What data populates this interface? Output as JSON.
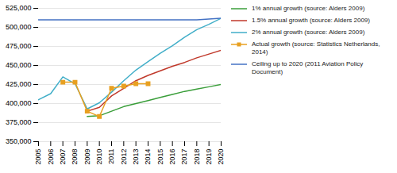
{
  "chart_data": {
    "type": "line",
    "xlim": [
      2005,
      2020
    ],
    "xticks": [
      2005,
      2006,
      2007,
      2008,
      2009,
      2010,
      2011,
      2012,
      2013,
      2014,
      2015,
      2016,
      2017,
      2018,
      2019,
      2020
    ],
    "ylim": [
      350000,
      525000
    ],
    "yticks": [
      {
        "value": 350000,
        "label": "350,000"
      },
      {
        "value": 375000,
        "label": "375,000"
      },
      {
        "value": 400000,
        "label": "400,000"
      },
      {
        "value": 425000,
        "label": "425,000"
      },
      {
        "value": 450000,
        "label": "450,000"
      },
      {
        "value": 475000,
        "label": "475,000"
      },
      {
        "value": 500000,
        "label": "500,000"
      },
      {
        "value": 525000,
        "label": "525,000"
      }
    ],
    "grid": "y",
    "legend": "right",
    "series": [
      {
        "name": "1% annual growth (source: Alders 2009)",
        "color": "#3a9e3a",
        "x": [
          2009,
          2010,
          2011,
          2012,
          2013,
          2014,
          2015,
          2016,
          2017,
          2018,
          2019,
          2020
        ],
        "values": [
          383000,
          384000,
          390000,
          396000,
          400000,
          404000,
          408000,
          412000,
          416000,
          419000,
          422000,
          425000
        ]
      },
      {
        "name": "1.5% annual growth (source: Alders 2009)",
        "color": "#c0392b",
        "x": [
          2009,
          2010,
          2011,
          2012,
          2013,
          2014,
          2015,
          2016,
          2017,
          2018,
          2019,
          2020
        ],
        "values": [
          390000,
          395000,
          410000,
          420000,
          430000,
          437000,
          443000,
          449000,
          454000,
          460000,
          465000,
          470000
        ]
      },
      {
        "name": "2% annual growth (source: Alders 2009)",
        "color": "#41aec8",
        "x": [
          2005,
          2006,
          2007,
          2008,
          2009,
          2010,
          2011,
          2012,
          2013,
          2014,
          2015,
          2016,
          2017,
          2018,
          2019,
          2020
        ],
        "values": [
          405000,
          413000,
          435000,
          426000,
          393000,
          401000,
          415000,
          430000,
          444000,
          455000,
          466000,
          476000,
          487000,
          497000,
          504000,
          512000
        ]
      },
      {
        "name": "Actual growth (source: Statistics Netherlands, 2014)",
        "color": "#e8a020",
        "marker": "square",
        "x": [
          2007,
          2008,
          2009,
          2010,
          2011,
          2012,
          2013,
          2014
        ],
        "values": [
          428000,
          428000,
          390000,
          383000,
          420000,
          423000,
          426000,
          426000
        ]
      },
      {
        "name": "Ceiling up to 2020 (2011 Aviation Policy Document)",
        "color": "#4472c4",
        "x": [
          2005,
          2018,
          2020
        ],
        "values": [
          510000,
          510000,
          512000
        ]
      }
    ]
  }
}
